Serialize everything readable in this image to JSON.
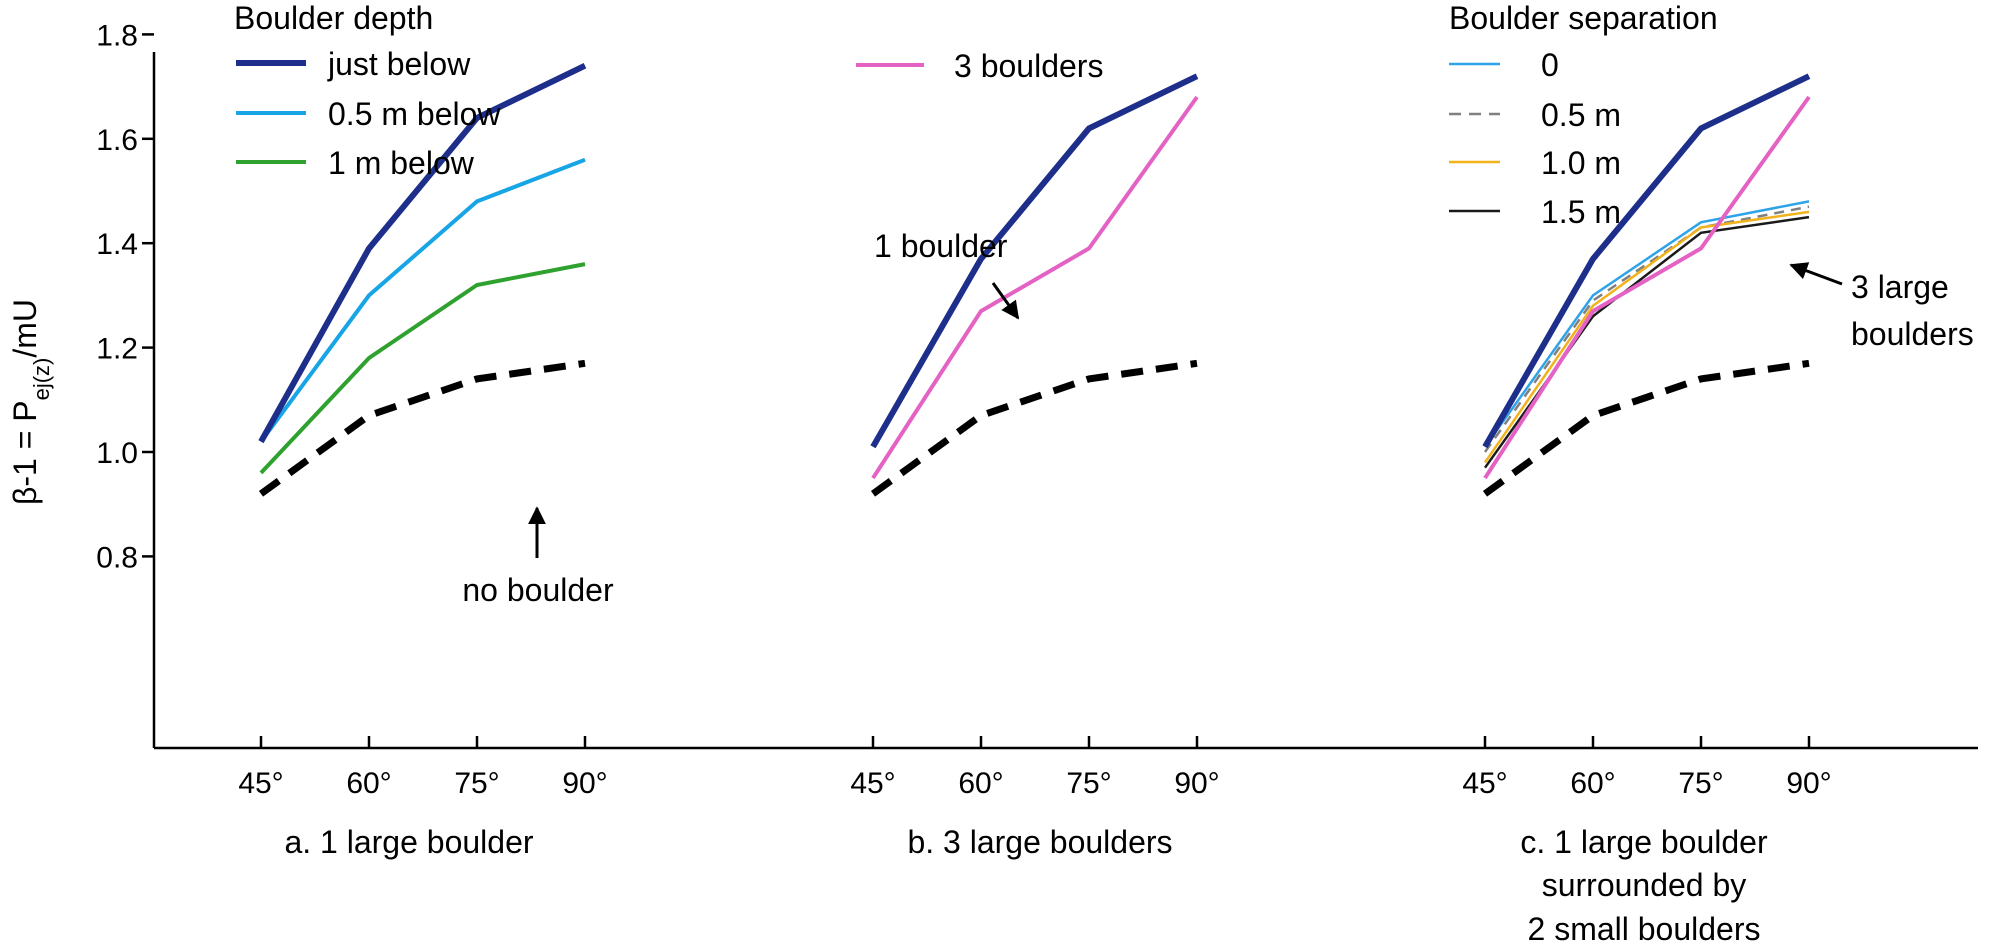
{
  "chart_data": {
    "type": "line",
    "x": [
      "45°",
      "60°",
      "75°",
      "90°"
    ],
    "ylabel": "β-1 = Pej(z)/mU",
    "ylabel_main": "β-1 = P",
    "ylabel_sub": "ej(z)",
    "ylabel_tail": "/mU",
    "ylim": [
      0.62,
      1.98
    ],
    "yticks": [
      "0.8",
      "1.0",
      "1.2",
      "1.4",
      "1.6",
      "1.8"
    ],
    "panels": [
      {
        "caption": [
          "a. 1 large boulder"
        ],
        "legend_title": "Boulder depth",
        "series": [
          {
            "name": "just below",
            "values": [
              1.02,
              1.39,
              1.64,
              1.74
            ],
            "color": "#1d2f8a",
            "style": "thick"
          },
          {
            "name": "0.5 m below",
            "values": [
              1.02,
              1.3,
              1.48,
              1.56
            ],
            "color": "#17a5e6",
            "style": "medium"
          },
          {
            "name": "1 m below",
            "values": [
              0.96,
              1.18,
              1.32,
              1.36
            ],
            "color": "#2fa12f",
            "style": "medium"
          },
          {
            "name": "no boulder",
            "values": [
              0.92,
              1.07,
              1.14,
              1.17
            ],
            "color": "#000000",
            "style": "dashed"
          }
        ],
        "annotations": [
          {
            "text": "no boulder"
          }
        ]
      },
      {
        "caption": [
          "b. 3 large boulders"
        ],
        "series": [
          {
            "name": "1 boulder",
            "values": [
              1.01,
              1.37,
              1.62,
              1.72
            ],
            "color": "#1d2f8a",
            "style": "thick"
          },
          {
            "name": "3 boulders",
            "values": [
              0.95,
              1.27,
              1.39,
              1.68
            ],
            "color": "#e362c4",
            "style": "medium"
          },
          {
            "name": "no boulder",
            "values": [
              0.92,
              1.07,
              1.14,
              1.17
            ],
            "color": "#000000",
            "style": "dashed"
          }
        ],
        "annotations": [
          {
            "text": "1 boulder"
          }
        ]
      },
      {
        "caption": [
          "c. 1 large boulder",
          "surrounded by",
          "2 small boulders"
        ],
        "legend_title": "Boulder separation",
        "series": [
          {
            "name": "1 boulder",
            "values": [
              1.01,
              1.37,
              1.62,
              1.72
            ],
            "color": "#1d2f8a",
            "style": "thick"
          },
          {
            "name": "3 large boulders",
            "values": [
              0.95,
              1.27,
              1.39,
              1.68
            ],
            "color": "#e362c4",
            "style": "medium"
          },
          {
            "name": "0",
            "values": [
              1.01,
              1.3,
              1.44,
              1.48
            ],
            "color": "#2ea3e8",
            "style": "thin"
          },
          {
            "name": "0.5 m",
            "values": [
              1.0,
              1.29,
              1.43,
              1.47
            ],
            "color": "#808080",
            "style": "thin-dashed"
          },
          {
            "name": "1.0 m",
            "values": [
              0.98,
              1.28,
              1.43,
              1.46
            ],
            "color": "#f2b21c",
            "style": "thin"
          },
          {
            "name": "1.5 m",
            "values": [
              0.97,
              1.26,
              1.42,
              1.45
            ],
            "color": "#1a1a1a",
            "style": "thin"
          },
          {
            "name": "no boulder",
            "values": [
              0.92,
              1.07,
              1.14,
              1.17
            ],
            "color": "#000000",
            "style": "dashed"
          }
        ],
        "annotations": [
          {
            "text": "3 large"
          },
          {
            "text": "boulders"
          }
        ]
      }
    ]
  }
}
